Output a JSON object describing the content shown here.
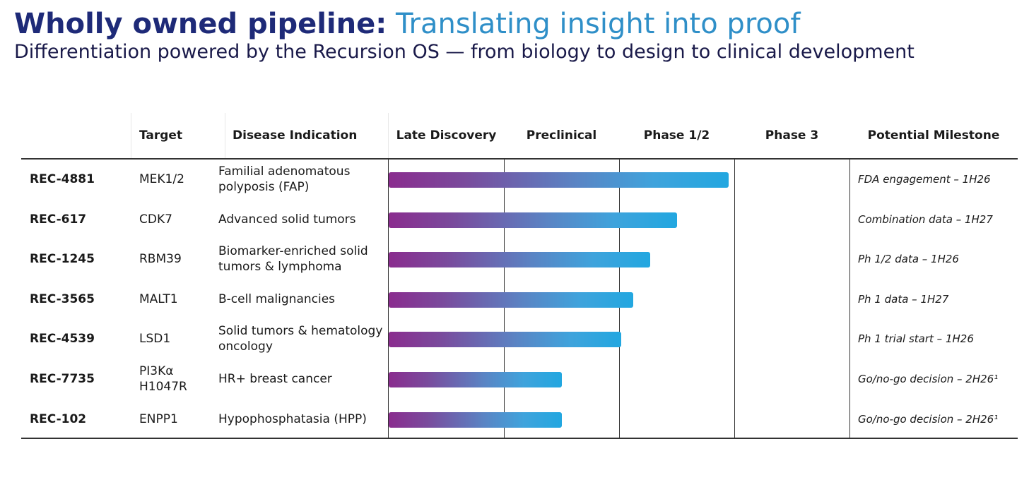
{
  "header": {
    "title_bold": "Wholly owned pipeline:",
    "title_light": "Translating insight into proof",
    "subtitle": "Differentiation powered by the Recursion OS — from biology to design to clinical development"
  },
  "columns": {
    "target": "Target",
    "indication": "Disease Indication",
    "late_discovery": "Late Discovery",
    "preclinical": "Preclinical",
    "phase12": "Phase 1/2",
    "phase3": "Phase 3",
    "milestone": "Potential Milestone"
  },
  "colors": {
    "bar_start": "#8a2c8e",
    "bar_end": "#22a7e0",
    "title_dark": "#1e2a78",
    "title_light": "#2f8fc8"
  },
  "chart_data": {
    "type": "table",
    "stages": [
      "Late Discovery",
      "Preclinical",
      "Phase 1/2",
      "Phase 3"
    ],
    "progress_unit": "stages completed (0-4)",
    "rows": [
      {
        "program": "REC-4881",
        "target": "MEK1/2",
        "indication": "Familial adenomatous polyposis (FAP)",
        "progress": 2.95,
        "milestone": "FDA engagement – 1H26"
      },
      {
        "program": "REC-617",
        "target": "CDK7",
        "indication": "Advanced solid tumors",
        "progress": 2.5,
        "milestone": "Combination data – 1H27"
      },
      {
        "program": "REC-1245",
        "target": "RBM39",
        "indication": "Biomarker-enriched solid tumors & lymphoma",
        "progress": 2.27,
        "milestone": "Ph 1/2 data – 1H26"
      },
      {
        "program": "REC-3565",
        "target": "MALT1",
        "indication": "B-cell malignancies",
        "progress": 2.12,
        "milestone": "Ph 1 data – 1H27"
      },
      {
        "program": "REC-4539",
        "target": "LSD1",
        "indication": "Solid tumors & hematology oncology",
        "progress": 2.02,
        "milestone": "Ph 1 trial start – 1H26"
      },
      {
        "program": "REC-7735",
        "target": "PI3Kα H1047R",
        "indication": "HR+ breast cancer",
        "progress": 1.5,
        "milestone": "Go/no-go decision – 2H26¹"
      },
      {
        "program": "REC-102",
        "target": "ENPP1",
        "indication": "Hypophosphatasia (HPP)",
        "progress": 1.5,
        "milestone": "Go/no-go decision – 2H26¹"
      }
    ]
  }
}
